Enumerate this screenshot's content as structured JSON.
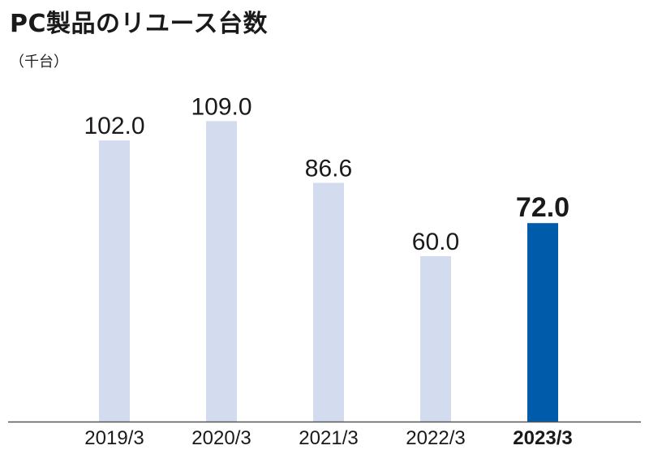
{
  "chart_data": {
    "type": "bar",
    "title": "PC製品のリユース台数",
    "unit": "（千台）",
    "categories": [
      "2019/3",
      "2020/3",
      "2021/3",
      "2022/3",
      "2023/3"
    ],
    "values": [
      102.0,
      109.0,
      86.6,
      60.0,
      72.0
    ],
    "value_labels": [
      "102.0",
      "109.0",
      "86.6",
      "60.0",
      "72.0"
    ],
    "highlight_index": 4,
    "ylim": [
      0,
      120
    ],
    "grid": false,
    "legend": "none"
  },
  "colors": {
    "bar": "#d3dcee",
    "highlight_bar": "#005bab",
    "highlight_text": "#005bab",
    "axis": "#555555",
    "text": "#1a1a1a"
  }
}
